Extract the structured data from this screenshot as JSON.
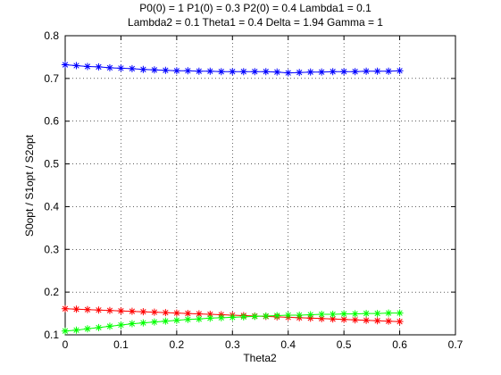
{
  "chart_data": {
    "type": "line",
    "title_lines": [
      "P0(0) = 1 P1(0) = 0.3 P2(0) = 0.4 Lambda1 = 0.1",
      "Lambda2 = 0.1 Theta1 = 0.4 Delta = 1.94 Gamma = 1"
    ],
    "xlabel": "Theta2",
    "ylabel": "S0opt / S1opt / S2opt",
    "xlim": [
      0,
      0.7
    ],
    "ylim": [
      0.1,
      0.8
    ],
    "xticks": [
      "0",
      "0.1",
      "0.2",
      "0.3",
      "0.4",
      "0.5",
      "0.6",
      "0.7"
    ],
    "yticks": [
      "0.1",
      "0.2",
      "0.3",
      "0.4",
      "0.5",
      "0.6",
      "0.7",
      "0.8"
    ],
    "grid": true,
    "marker": "*",
    "x": [
      0,
      0.02,
      0.04,
      0.06,
      0.08,
      0.1,
      0.12,
      0.14,
      0.16,
      0.18,
      0.2,
      0.22,
      0.24,
      0.26,
      0.28,
      0.3,
      0.32,
      0.34,
      0.36,
      0.38,
      0.4,
      0.42,
      0.44,
      0.46,
      0.48,
      0.5,
      0.52,
      0.54,
      0.56,
      0.58,
      0.6
    ],
    "series": [
      {
        "color": "#0000ff",
        "values": [
          0.732,
          0.73,
          0.728,
          0.727,
          0.725,
          0.724,
          0.723,
          0.721,
          0.72,
          0.719,
          0.718,
          0.718,
          0.717,
          0.717,
          0.716,
          0.716,
          0.716,
          0.716,
          0.716,
          0.715,
          0.713,
          0.714,
          0.715,
          0.715,
          0.716,
          0.716,
          0.716,
          0.717,
          0.717,
          0.717,
          0.718
        ]
      },
      {
        "color": "#ff0000",
        "values": [
          0.161,
          0.16,
          0.159,
          0.158,
          0.157,
          0.156,
          0.155,
          0.154,
          0.153,
          0.152,
          0.151,
          0.15,
          0.149,
          0.148,
          0.147,
          0.146,
          0.145,
          0.144,
          0.143,
          0.142,
          0.141,
          0.14,
          0.139,
          0.138,
          0.137,
          0.136,
          0.135,
          0.134,
          0.133,
          0.132,
          0.131
        ]
      },
      {
        "color": "#00ff00",
        "values": [
          0.109,
          0.111,
          0.114,
          0.117,
          0.12,
          0.123,
          0.126,
          0.128,
          0.13,
          0.132,
          0.134,
          0.136,
          0.137,
          0.139,
          0.14,
          0.141,
          0.142,
          0.143,
          0.144,
          0.145,
          0.146,
          0.146,
          0.147,
          0.148,
          0.148,
          0.149,
          0.149,
          0.15,
          0.15,
          0.151,
          0.151
        ]
      }
    ]
  }
}
